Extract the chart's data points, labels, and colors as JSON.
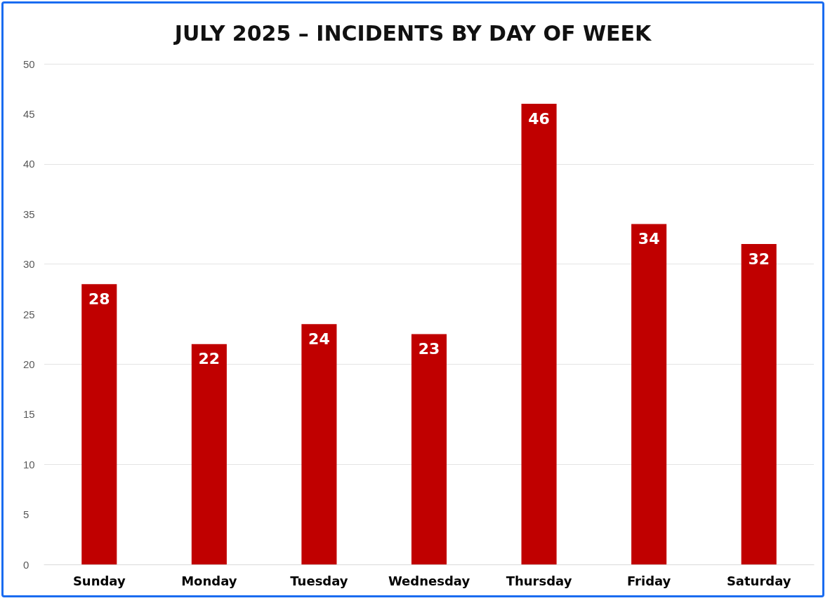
{
  "chart_data": {
    "type": "bar",
    "title": "JULY 2025 – INCIDENTS BY DAY OF WEEK",
    "categories": [
      "Sunday",
      "Monday",
      "Tuesday",
      "Wednesday",
      "Thursday",
      "Friday",
      "Saturday"
    ],
    "values": [
      28,
      22,
      24,
      23,
      46,
      34,
      32
    ],
    "color": "#c00000",
    "ylim": [
      0,
      50
    ],
    "yticks": [
      0,
      5,
      10,
      15,
      20,
      25,
      30,
      35,
      40,
      45,
      50
    ],
    "grid": "y",
    "data_labels": true
  }
}
